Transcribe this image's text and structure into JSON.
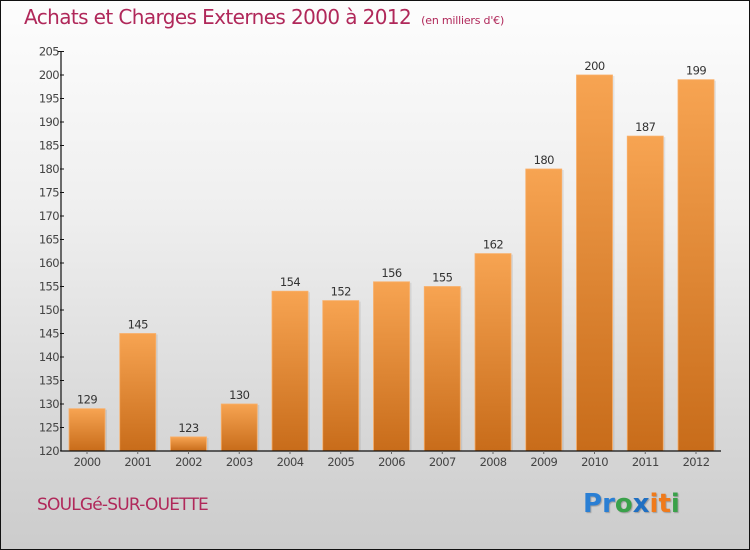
{
  "title": {
    "main": "Achats et Charges Externes 2000 à 2012",
    "unit": "(en milliers d'€)"
  },
  "town": "SOULGé-SUR-OUETTE",
  "logo": {
    "letters": [
      {
        "char": "P",
        "color": "#2a7fd4"
      },
      {
        "char": "r",
        "color": "#2a7fd4"
      },
      {
        "char": "o",
        "color": "#3aa14a"
      },
      {
        "char": "x",
        "color": "#1f6fc2"
      },
      {
        "char": "i",
        "color": "#f07a1a"
      },
      {
        "char": "t",
        "color": "#f07a1a"
      },
      {
        "char": "i",
        "color": "#3aa14a"
      }
    ]
  },
  "colors": {
    "title": "#b0285a",
    "bar_top": "#f7a452",
    "bar_bottom": "#c86c1a",
    "axis": "#111111"
  },
  "chart_data": {
    "type": "bar",
    "title": "Achats et Charges Externes 2000 à 2012",
    "subtitle": "(en milliers d'€)",
    "xlabel": "",
    "ylabel": "",
    "categories": [
      "2000",
      "2001",
      "2002",
      "2003",
      "2004",
      "2005",
      "2006",
      "2007",
      "2008",
      "2009",
      "2010",
      "2011",
      "2012"
    ],
    "values": [
      129,
      145,
      123,
      130,
      154,
      152,
      156,
      155,
      162,
      180,
      200,
      187,
      199
    ],
    "ylim": [
      120,
      205
    ],
    "yticks": [
      120,
      125,
      130,
      135,
      140,
      145,
      150,
      155,
      160,
      165,
      170,
      175,
      180,
      185,
      190,
      195,
      200,
      205
    ],
    "grid": false,
    "legend": "none",
    "data_labels": true
  }
}
